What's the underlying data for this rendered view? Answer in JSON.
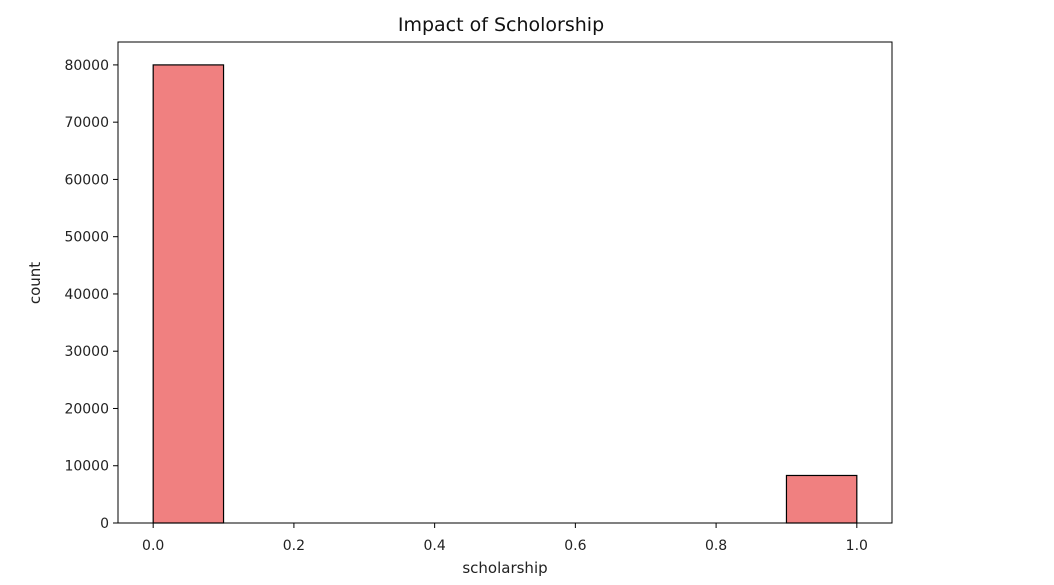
{
  "chart_data": {
    "type": "bar",
    "title": "Impact of Scholorship",
    "xlabel": "scholarship",
    "ylabel": "count",
    "bins": [
      {
        "x0": 0.0,
        "x1": 0.1,
        "value": 80000
      },
      {
        "x0": 0.1,
        "x1": 0.2,
        "value": 0
      },
      {
        "x0": 0.2,
        "x1": 0.3,
        "value": 0
      },
      {
        "x0": 0.3,
        "x1": 0.4,
        "value": 0
      },
      {
        "x0": 0.4,
        "x1": 0.5,
        "value": 0
      },
      {
        "x0": 0.5,
        "x1": 0.6,
        "value": 0
      },
      {
        "x0": 0.6,
        "x1": 0.7,
        "value": 0
      },
      {
        "x0": 0.7,
        "x1": 0.8,
        "value": 0
      },
      {
        "x0": 0.8,
        "x1": 0.9,
        "value": 0
      },
      {
        "x0": 0.9,
        "x1": 1.0,
        "value": 8300
      }
    ],
    "xlim": [
      -0.05,
      1.05
    ],
    "ylim": [
      0,
      84000
    ],
    "xticks": [
      0.0,
      0.2,
      0.4,
      0.6,
      0.8,
      1.0
    ],
    "xtick_labels": [
      "0.0",
      "0.2",
      "0.4",
      "0.6",
      "0.8",
      "1.0"
    ],
    "yticks": [
      0,
      10000,
      20000,
      30000,
      40000,
      50000,
      60000,
      70000,
      80000
    ],
    "ytick_labels": [
      "0",
      "10000",
      "20000",
      "30000",
      "40000",
      "50000",
      "60000",
      "70000",
      "80000"
    ],
    "grid": false,
    "colors": {
      "bar_fill": "#f08080",
      "bar_edge": "#000000",
      "axis": "#000000"
    }
  }
}
